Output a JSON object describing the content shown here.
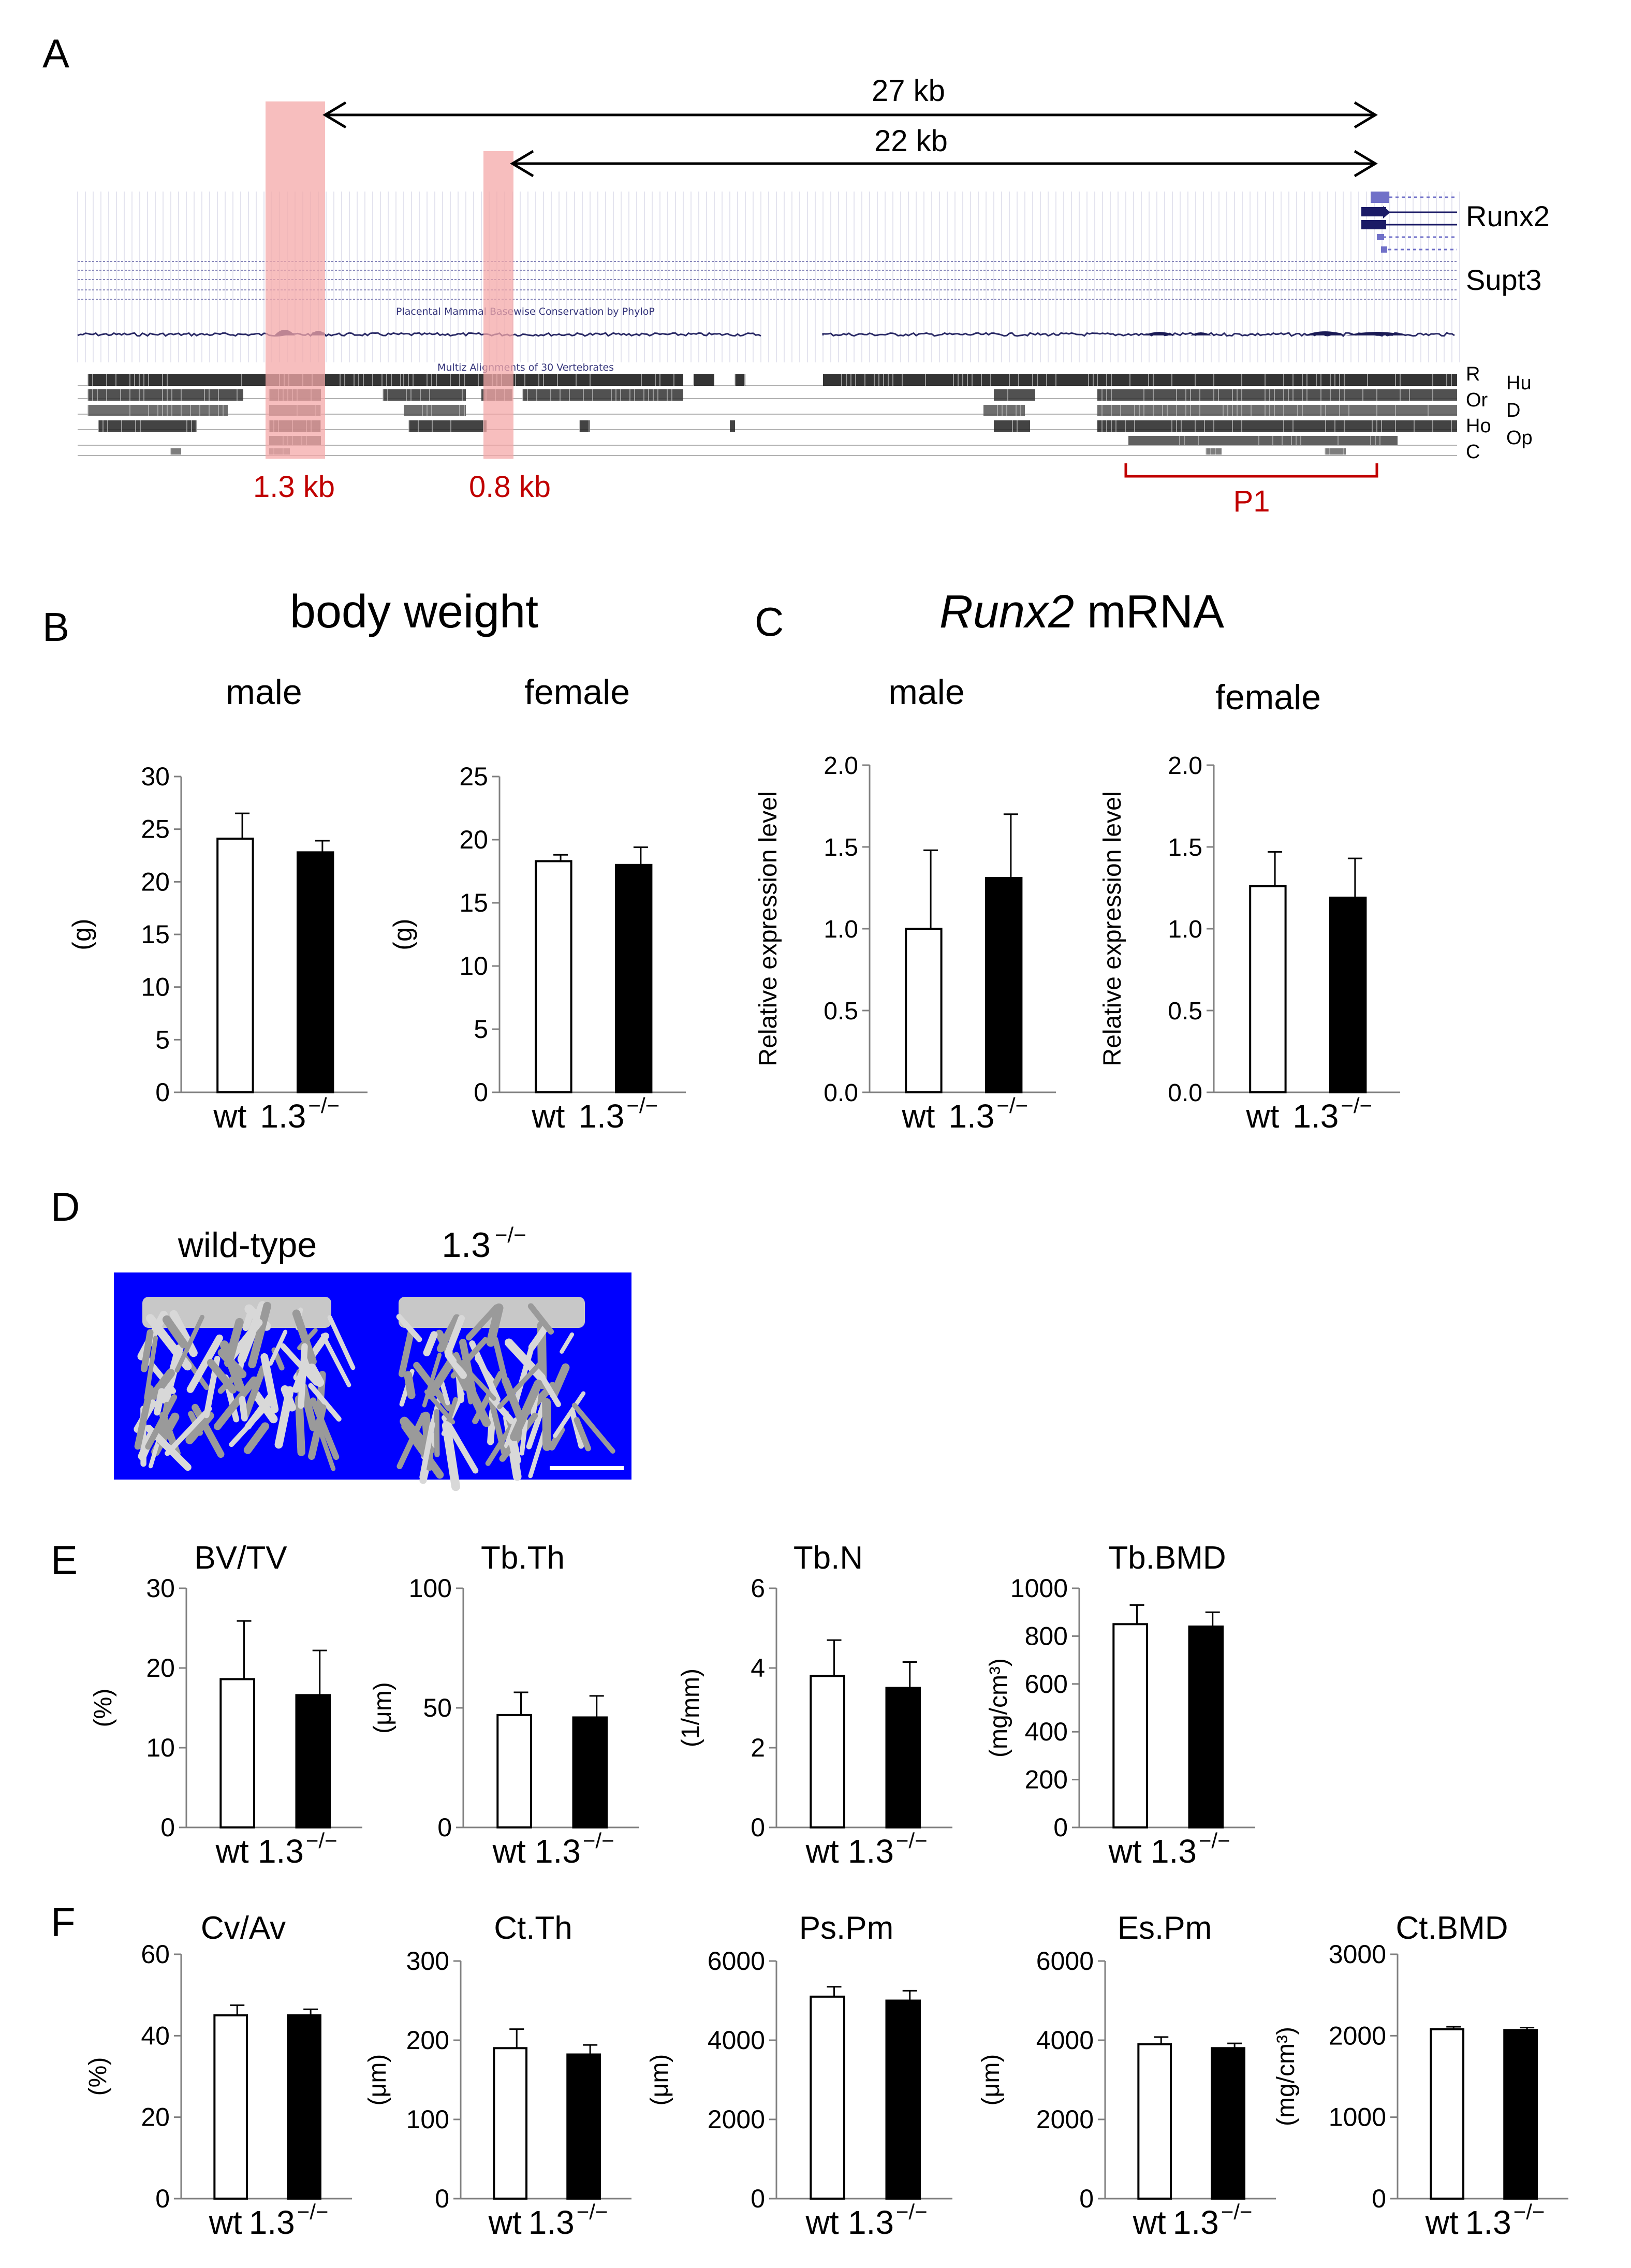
{
  "panel_letters": [
    "A",
    "B",
    "C",
    "D",
    "E",
    "F"
  ],
  "panelA": {
    "arrow_27": "27 kb",
    "arrow_22": "22 kb",
    "gene_runx2": "Runx2",
    "gene_supt3": "Supt3",
    "track_phylop": "Placental Mammal Basewise Conservation by PhyloP",
    "track_multiz": "Multiz Alignments of 30 Vertebrates",
    "species_left": [
      "R",
      "Or",
      "Ho",
      "C"
    ],
    "species_right": [
      "Hu",
      "D",
      "Op"
    ],
    "region_13": "1.3 kb",
    "region_08": "0.8 kb",
    "p1": "P1",
    "colors": {
      "highlight": "#f4a8a8",
      "red_text": "#c00000",
      "track": "#1a1a55"
    }
  },
  "panelB": {
    "title": "body weight"
  },
  "panelC": {
    "title_italic": "Runx2",
    "title_rest": " mRNA"
  },
  "panelD": {
    "label_wt": "wild-type",
    "label_ko_base": "1.3",
    "label_ko_sup": "−/−",
    "background_color": "#0000ff"
  },
  "genotype_labels": {
    "wt": "wt",
    "ko_base": "1.3",
    "ko_sup": "−/−"
  },
  "bar_colors": {
    "wt": "#ffffff",
    "ko": "#000000"
  },
  "chart_data": [
    {
      "id": "B-male",
      "type": "bar",
      "title": "male",
      "ylabel": "(g)",
      "ylim": [
        0,
        30
      ],
      "yticks": [
        0,
        5,
        10,
        15,
        20,
        25,
        30
      ],
      "categories": [
        "wt",
        "1.3−/−"
      ],
      "values": [
        24.1,
        22.8
      ],
      "errors": [
        2.4,
        1.1
      ]
    },
    {
      "id": "B-female",
      "type": "bar",
      "title": "female",
      "ylabel": "(g)",
      "ylim": [
        0,
        25
      ],
      "yticks": [
        0,
        5,
        10,
        15,
        20,
        25
      ],
      "categories": [
        "wt",
        "1.3−/−"
      ],
      "values": [
        18.3,
        18.0
      ],
      "errors": [
        0.5,
        1.4
      ]
    },
    {
      "id": "C-male",
      "type": "bar",
      "title": "male",
      "ylabel": "Relative expression level",
      "ylim": [
        0,
        2
      ],
      "yticks": [
        "0.0",
        "0.5",
        "1.0",
        "1.5",
        "2.0"
      ],
      "categories": [
        "wt",
        "1.3−/−"
      ],
      "values": [
        1.0,
        1.31
      ],
      "errors": [
        0.48,
        0.39
      ]
    },
    {
      "id": "C-female",
      "type": "bar",
      "title": "female",
      "ylabel": "Relative expression level",
      "ylim": [
        0,
        2
      ],
      "yticks": [
        "0.0",
        "0.5",
        "1.0",
        "1.5",
        "2.0"
      ],
      "categories": [
        "wt",
        "1.3−/−"
      ],
      "values": [
        1.26,
        1.19
      ],
      "errors": [
        0.21,
        0.24
      ]
    },
    {
      "id": "E-bvtv",
      "type": "bar",
      "title": "BV/TV",
      "ylabel": "(%)",
      "ylim": [
        0,
        30
      ],
      "yticks": [
        0,
        10,
        20,
        30
      ],
      "categories": [
        "wt",
        "1.3−/−"
      ],
      "values": [
        18.6,
        16.6
      ],
      "errors": [
        7.3,
        5.6
      ]
    },
    {
      "id": "E-tbth",
      "type": "bar",
      "title": "Tb.Th",
      "ylabel": "(μm)",
      "ylim": [
        0,
        100
      ],
      "yticks": [
        0,
        50,
        100
      ],
      "categories": [
        "wt",
        "1.3−/−"
      ],
      "values": [
        47,
        46
      ],
      "errors": [
        9.5,
        9.0
      ]
    },
    {
      "id": "E-tbn",
      "type": "bar",
      "title": "Tb.N",
      "ylabel": "(1/mm)",
      "ylim": [
        0,
        6
      ],
      "yticks": [
        0,
        2,
        4,
        6
      ],
      "categories": [
        "wt",
        "1.3−/−"
      ],
      "values": [
        3.8,
        3.5
      ],
      "errors": [
        0.9,
        0.65
      ]
    },
    {
      "id": "E-tbbmd",
      "type": "bar",
      "title": "Tb.BMD",
      "ylabel": "(mg/cm³)",
      "ylim": [
        0,
        1000
      ],
      "yticks": [
        0,
        200,
        400,
        600,
        800,
        1000
      ],
      "categories": [
        "wt",
        "1.3−/−"
      ],
      "values": [
        850,
        840
      ],
      "errors": [
        80,
        60
      ]
    },
    {
      "id": "F-cvav",
      "type": "bar",
      "title": "Cv/Av",
      "ylabel": "(%)",
      "ylim": [
        0,
        60
      ],
      "yticks": [
        0,
        20,
        40,
        60
      ],
      "categories": [
        "wt",
        "1.3−/−"
      ],
      "values": [
        45,
        45
      ],
      "errors": [
        2.5,
        1.5
      ]
    },
    {
      "id": "F-ctth",
      "type": "bar",
      "title": "Ct.Th",
      "ylabel": "(μm)",
      "ylim": [
        0,
        300
      ],
      "yticks": [
        0,
        100,
        200,
        300
      ],
      "categories": [
        "wt",
        "1.3−/−"
      ],
      "values": [
        190,
        182
      ],
      "errors": [
        24,
        12
      ]
    },
    {
      "id": "F-pspm",
      "type": "bar",
      "title": "Ps.Pm",
      "ylabel": "(μm)",
      "ylim": [
        0,
        6000
      ],
      "yticks": [
        0,
        2000,
        4000,
        6000
      ],
      "categories": [
        "wt",
        "1.3−/−"
      ],
      "values": [
        5100,
        5000
      ],
      "errors": [
        250,
        250
      ]
    },
    {
      "id": "F-espm",
      "type": "bar",
      "title": "Es.Pm",
      "ylabel": "(μm)",
      "ylim": [
        0,
        6000
      ],
      "yticks": [
        0,
        2000,
        4000,
        6000
      ],
      "categories": [
        "wt",
        "1.3−/−"
      ],
      "values": [
        3900,
        3800
      ],
      "errors": [
        180,
        120
      ]
    },
    {
      "id": "F-ctbmd",
      "type": "bar",
      "title": "Ct.BMD",
      "ylabel": "(mg/cm³)",
      "ylim": [
        0,
        3000
      ],
      "yticks": [
        0,
        1000,
        2000,
        3000
      ],
      "categories": [
        "wt",
        "1.3−/−"
      ],
      "values": [
        2080,
        2070
      ],
      "errors": [
        30,
        30
      ]
    }
  ]
}
